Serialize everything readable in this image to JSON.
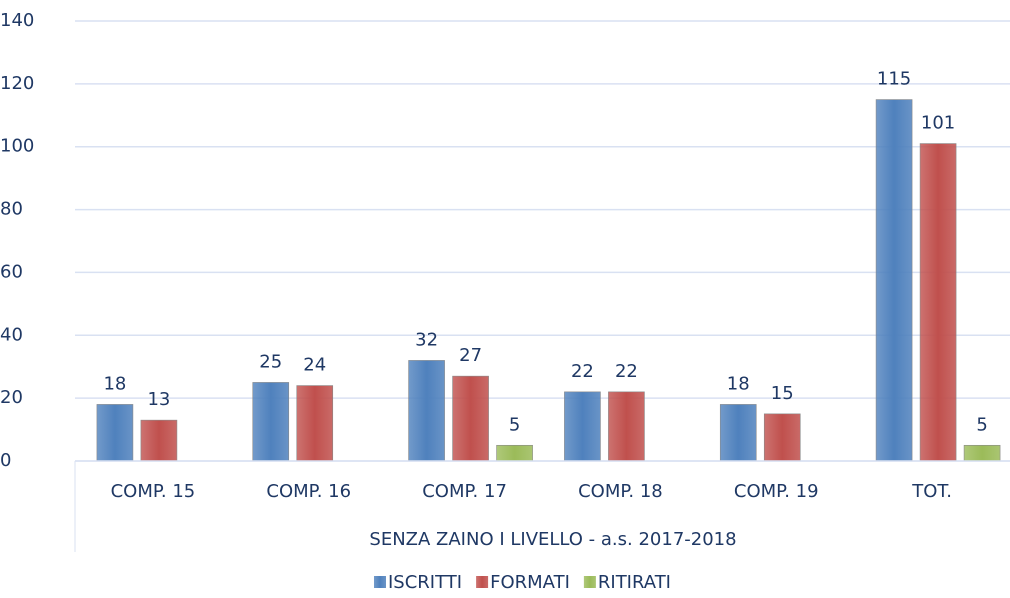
{
  "chart_data": {
    "type": "bar",
    "categories": [
      "COMP. 15",
      "COMP. 16",
      "COMP. 17",
      "COMP. 18",
      "COMP. 19",
      "TOT."
    ],
    "category_group_label": "SENZA ZAINO I LIVELLO - a.s. 2017-2018",
    "series": [
      {
        "name": "ISCRITTI",
        "color": "#4f81bd",
        "values": [
          18,
          25,
          32,
          22,
          18,
          115
        ]
      },
      {
        "name": "FORMATI",
        "color": "#c0504d",
        "values": [
          13,
          24,
          27,
          22,
          15,
          101
        ]
      },
      {
        "name": "RITIRATI",
        "color": "#9bbb59",
        "values": [
          null,
          null,
          5,
          null,
          null,
          5
        ]
      }
    ],
    "ylim": [
      0,
      140
    ],
    "yticks": [
      0,
      20,
      40,
      60,
      80,
      100,
      120,
      140
    ],
    "grid": true,
    "legend": "bottom"
  }
}
